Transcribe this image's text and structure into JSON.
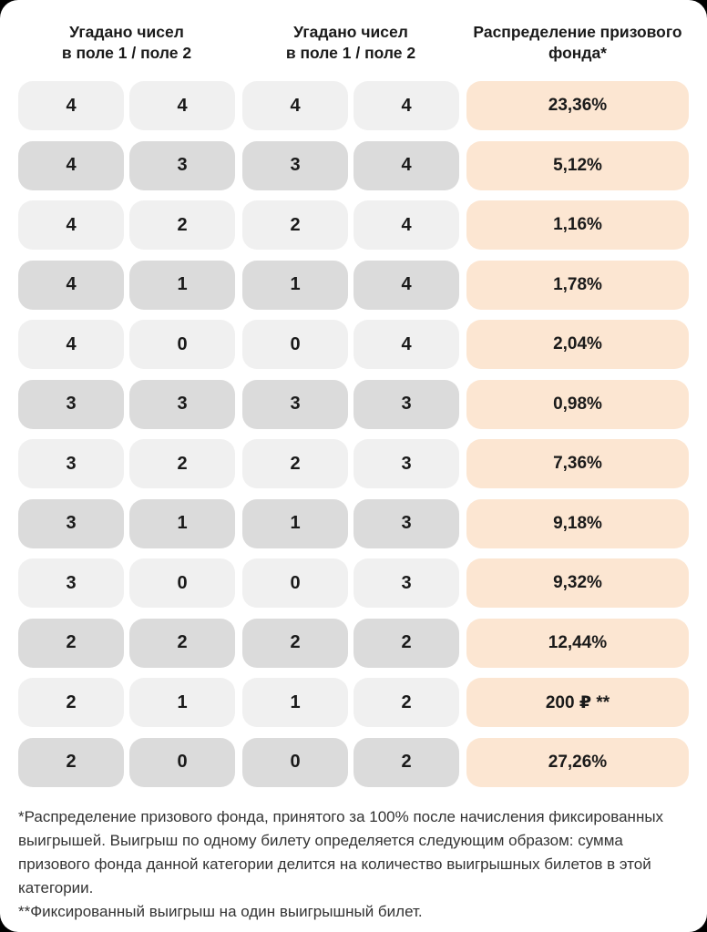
{
  "table": {
    "headers": [
      {
        "line1": "Угадано чисел",
        "line2": "в поле 1 / поле 2"
      },
      {
        "line1": "Угадано чисел",
        "line2": "в поле 1 / поле 2"
      },
      {
        "line1": "Распределение призового",
        "line2": "фонда*"
      }
    ],
    "rows": [
      {
        "cells": [
          "4",
          "4",
          "4",
          "4"
        ],
        "prize": "23,36%"
      },
      {
        "cells": [
          "4",
          "3",
          "3",
          "4"
        ],
        "prize": "5,12%"
      },
      {
        "cells": [
          "4",
          "2",
          "2",
          "4"
        ],
        "prize": "1,16%"
      },
      {
        "cells": [
          "4",
          "1",
          "1",
          "4"
        ],
        "prize": "1,78%"
      },
      {
        "cells": [
          "4",
          "0",
          "0",
          "4"
        ],
        "prize": "2,04%"
      },
      {
        "cells": [
          "3",
          "3",
          "3",
          "3"
        ],
        "prize": "0,98%"
      },
      {
        "cells": [
          "3",
          "2",
          "2",
          "3"
        ],
        "prize": "7,36%"
      },
      {
        "cells": [
          "3",
          "1",
          "1",
          "3"
        ],
        "prize": "9,18%"
      },
      {
        "cells": [
          "3",
          "0",
          "0",
          "3"
        ],
        "prize": "9,32%"
      },
      {
        "cells": [
          "2",
          "2",
          "2",
          "2"
        ],
        "prize": "12,44%"
      },
      {
        "cells": [
          "2",
          "1",
          "1",
          "2"
        ],
        "prize": "200 ₽ **"
      },
      {
        "cells": [
          "2",
          "0",
          "0",
          "2"
        ],
        "prize": "27,26%"
      }
    ]
  },
  "footnotes": {
    "note1": "*Распределение призового фонда, принятого за 100% после начисления фиксированных выигрышей. Выигрыш по одному билету определяется следующим образом: сумма призового фонда данной категории делится на количество выигрышных билетов в этой категории.",
    "note2": "**Фиксированный выигрыш на один выигрышный билет."
  },
  "colors": {
    "card_background": "#ffffff",
    "page_background": "#000000",
    "pill_light": "#f0f0f0",
    "pill_dark": "#dbdbdb",
    "prize_pill": "#fce6d2",
    "text": "#1a1a1a",
    "footnote_text": "#333333"
  }
}
